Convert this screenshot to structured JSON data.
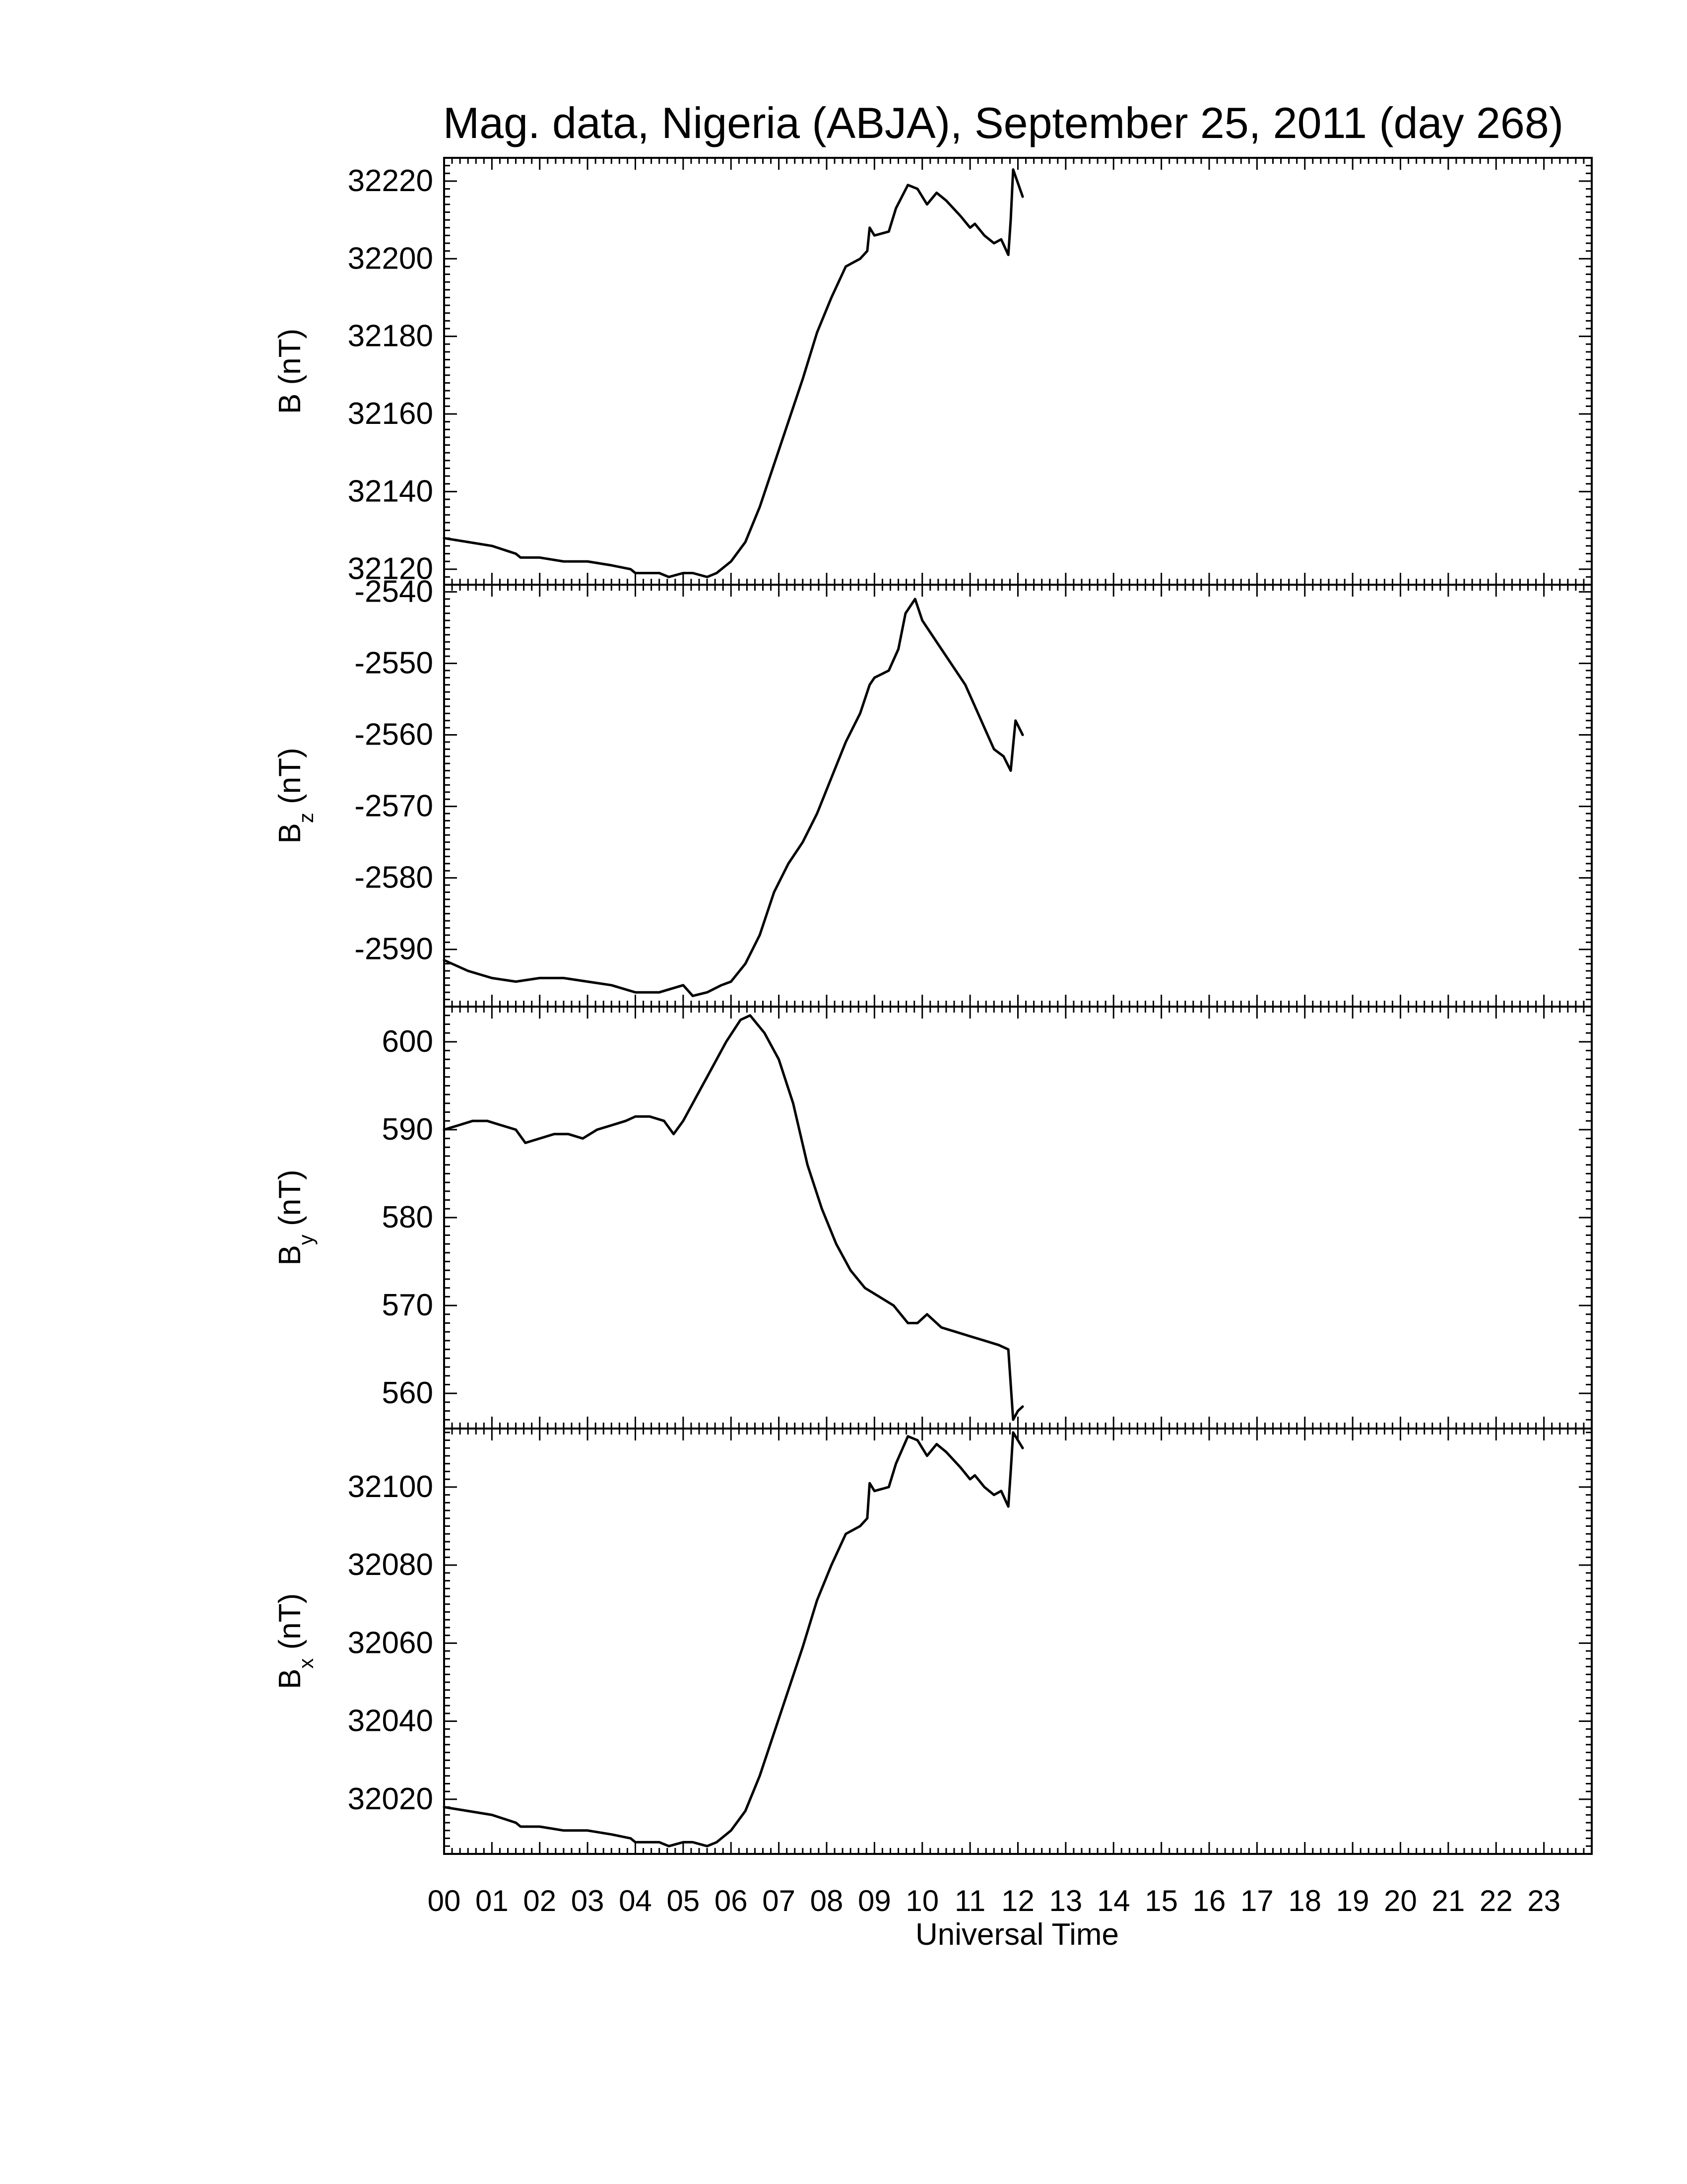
{
  "title": "Mag. data, Nigeria (ABJA), September 25, 2011 (day 268)",
  "xlabel": "Universal Time",
  "chart_data": [
    {
      "type": "line",
      "ylabel": "B (nT)",
      "ylabel_main": "B",
      "ylabel_sub": "",
      "ylabel_unit": "(nT)",
      "ylim": [
        32116,
        32226
      ],
      "yticks": [
        32120,
        32140,
        32160,
        32180,
        32200,
        32220
      ],
      "xlim": [
        0,
        24
      ],
      "series": [
        {
          "x": [
            0,
            0.5,
            1,
            1.5,
            1.6,
            2,
            2.5,
            3,
            3.5,
            3.9,
            4,
            4.5,
            4.7,
            5,
            5.2,
            5.5,
            5.7,
            6,
            6.3,
            6.6,
            6.9,
            7.2,
            7.5,
            7.8,
            8.1,
            8.4,
            8.7,
            8.85,
            8.9,
            9.0,
            9.3,
            9.45,
            9.7,
            9.9,
            10.1,
            10.3,
            10.5,
            10.8,
            11.0,
            11.1,
            11.3,
            11.5,
            11.65,
            11.8,
            11.85,
            11.9,
            12.1
          ],
          "y": [
            32128,
            32127,
            32126,
            32124,
            32123,
            32123,
            32122,
            32122,
            32121,
            32120,
            32119,
            32119,
            32118,
            32119,
            32119,
            32118,
            32119,
            32122,
            32127,
            32136,
            32147,
            32158,
            32169,
            32181,
            32190,
            32198,
            32200,
            32202,
            32208,
            32206,
            32207,
            32213,
            32219,
            32218,
            32214,
            32217,
            32215,
            32211,
            32208,
            32209,
            32206,
            32204,
            32205,
            32201,
            32210,
            32223,
            32216
          ]
        }
      ]
    },
    {
      "type": "line",
      "ylabel": "Bz (nT)",
      "ylabel_main": "B",
      "ylabel_sub": "z",
      "ylabel_unit": "(nT)",
      "ylim": [
        -2598,
        -2539
      ],
      "yticks": [
        -2590,
        -2580,
        -2570,
        -2560,
        -2550,
        -2540
      ],
      "xlim": [
        0,
        24
      ],
      "series": [
        {
          "x": [
            0,
            0.5,
            1,
            1.5,
            2,
            2.5,
            3,
            3.5,
            4,
            4.5,
            5,
            5.2,
            5.5,
            5.8,
            6,
            6.3,
            6.6,
            6.9,
            7.2,
            7.5,
            7.8,
            8.1,
            8.4,
            8.7,
            8.9,
            9.0,
            9.3,
            9.5,
            9.65,
            9.85,
            10.0,
            10.3,
            10.6,
            10.9,
            11.1,
            11.3,
            11.5,
            11.7,
            11.85,
            11.95,
            12.1
          ],
          "y": [
            -2591.5,
            -2593,
            -2594,
            -2594.5,
            -2594,
            -2594,
            -2594.5,
            -2595,
            -2596,
            -2596,
            -2595,
            -2596.5,
            -2596,
            -2595,
            -2594.5,
            -2592,
            -2588,
            -2582,
            -2578,
            -2575,
            -2571,
            -2566,
            -2561,
            -2557,
            -2553,
            -2552,
            -2551,
            -2548,
            -2543,
            -2541,
            -2544,
            -2547,
            -2550,
            -2553,
            -2556,
            -2559,
            -2562,
            -2563,
            -2565,
            -2558,
            -2560
          ]
        }
      ]
    },
    {
      "type": "line",
      "ylabel": "By (nT)",
      "ylabel_main": "B",
      "ylabel_sub": "y",
      "ylabel_unit": "(nT)",
      "ylim": [
        556,
        604
      ],
      "yticks": [
        560,
        570,
        580,
        590,
        600
      ],
      "xlim": [
        0,
        24
      ],
      "series": [
        {
          "x": [
            0,
            0.3,
            0.6,
            0.9,
            1.2,
            1.5,
            1.7,
            2.0,
            2.3,
            2.6,
            2.9,
            3.2,
            3.5,
            3.8,
            4.0,
            4.3,
            4.6,
            4.8,
            5.0,
            5.3,
            5.6,
            5.9,
            6.2,
            6.4,
            6.7,
            7.0,
            7.3,
            7.6,
            7.9,
            8.2,
            8.5,
            8.8,
            9.1,
            9.4,
            9.7,
            9.9,
            10.1,
            10.4,
            10.7,
            11.0,
            11.3,
            11.6,
            11.8,
            11.9,
            12.0,
            12.1
          ],
          "y": [
            590,
            590.5,
            591,
            591,
            590.5,
            590,
            588.5,
            589,
            589.5,
            589.5,
            589,
            590,
            590.5,
            591,
            591.5,
            591.5,
            591,
            589.5,
            591,
            594,
            597,
            600,
            602.5,
            603,
            601,
            598,
            593,
            586,
            581,
            577,
            574,
            572,
            571,
            570,
            568,
            568,
            569,
            567.5,
            567,
            566.5,
            566,
            565.5,
            565,
            557,
            558,
            558.5
          ]
        }
      ]
    },
    {
      "type": "line",
      "ylabel": "Bx (nT)",
      "ylabel_main": "B",
      "ylabel_sub": "x",
      "ylabel_unit": "(nT)",
      "ylim": [
        32006,
        32115
      ],
      "yticks": [
        32020,
        32040,
        32060,
        32080,
        32100
      ],
      "xlim": [
        0,
        24
      ],
      "series": [
        {
          "x": [
            0,
            0.5,
            1,
            1.5,
            1.6,
            2,
            2.5,
            3,
            3.5,
            3.9,
            4,
            4.5,
            4.7,
            5,
            5.2,
            5.5,
            5.7,
            6,
            6.3,
            6.6,
            6.9,
            7.2,
            7.5,
            7.8,
            8.1,
            8.4,
            8.7,
            8.85,
            8.9,
            9.0,
            9.3,
            9.45,
            9.7,
            9.9,
            10.1,
            10.3,
            10.5,
            10.8,
            11.0,
            11.1,
            11.3,
            11.5,
            11.65,
            11.8,
            11.85,
            11.9,
            12.1
          ],
          "y": [
            32018,
            32017,
            32016,
            32014,
            32013,
            32013,
            32012,
            32012,
            32011,
            32010,
            32009,
            32009,
            32008,
            32009,
            32009,
            32008,
            32009,
            32012,
            32017,
            32026,
            32037,
            32048,
            32059,
            32071,
            32080,
            32088,
            32090,
            32092,
            32101,
            32099,
            32100,
            32106,
            32113,
            32112,
            32108,
            32111,
            32109,
            32105,
            32102,
            32103,
            32100,
            32098,
            32099,
            32095,
            32104,
            32114,
            32110
          ]
        }
      ]
    }
  ],
  "xticklabels": [
    "00",
    "01",
    "02",
    "03",
    "04",
    "05",
    "06",
    "07",
    "08",
    "09",
    "10",
    "11",
    "12",
    "13",
    "14",
    "15",
    "16",
    "17",
    "18",
    "19",
    "20",
    "21",
    "22",
    "23"
  ]
}
